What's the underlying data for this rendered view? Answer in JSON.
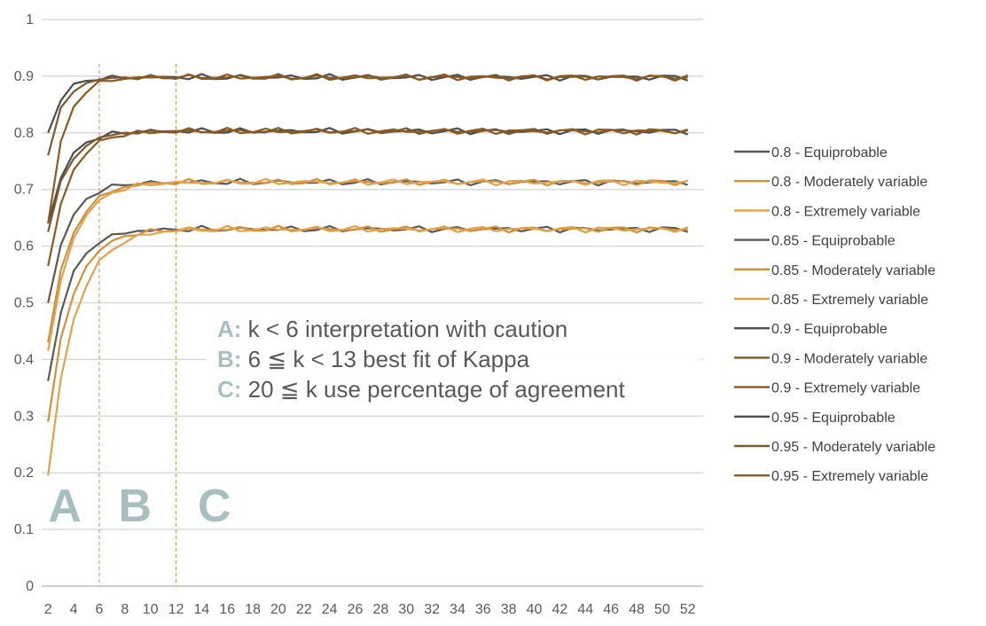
{
  "chart_data": {
    "type": "line",
    "title": "",
    "xlabel": "",
    "ylabel": "",
    "x": [
      2,
      3,
      4,
      5,
      6,
      7,
      8,
      9,
      10,
      11,
      12,
      13,
      14,
      15,
      16,
      17,
      18,
      19,
      20,
      21,
      22,
      23,
      24,
      25,
      26,
      27,
      28,
      29,
      30,
      31,
      32,
      33,
      34,
      35,
      36,
      37,
      38,
      39,
      40,
      41,
      42,
      43,
      44,
      45,
      46,
      47,
      48,
      49,
      50,
      51,
      52
    ],
    "xticks": [
      2,
      4,
      6,
      8,
      10,
      12,
      14,
      16,
      18,
      20,
      22,
      24,
      26,
      28,
      30,
      32,
      34,
      36,
      38,
      40,
      42,
      44,
      46,
      48,
      50,
      52
    ],
    "xlim": [
      1.5,
      53.2
    ],
    "ylim": [
      0,
      1
    ],
    "yticks": [
      0,
      0.1,
      0.2,
      0.3,
      0.4,
      0.5,
      0.6,
      0.7,
      0.8,
      0.9,
      1
    ],
    "ytick_labels": [
      "0",
      "0.1",
      "0.2",
      "0.3",
      "0.4",
      "0.5",
      "0.6",
      "0.7",
      "0.8",
      "0.9",
      "1"
    ],
    "grid": true,
    "legend_position": "right",
    "vertical_markers": [
      6,
      12
    ],
    "series": [
      {
        "name": "0.8 -  Equiprobable",
        "color": "#5a5a5a",
        "asymptote": 0.63,
        "start": 0.362,
        "rate": 0.62,
        "phase": 0.0
      },
      {
        "name": "0.8 -  Moderately variable",
        "color": "#d29138",
        "asymptote": 0.63,
        "start": 0.29,
        "rate": 0.55,
        "phase": 1.3
      },
      {
        "name": "0.8 -  Extremely variable",
        "color": "#e0a24a",
        "asymptote": 0.63,
        "start": 0.195,
        "rate": 0.5,
        "phase": 2.6
      },
      {
        "name": "0.85 -  Equiprobable",
        "color": "#5a5a5a",
        "asymptote": 0.713,
        "start": 0.5,
        "rate": 0.65,
        "phase": 0.7
      },
      {
        "name": "0.85 -  Moderately variable",
        "color": "#d29138",
        "asymptote": 0.713,
        "start": 0.43,
        "rate": 0.58,
        "phase": 1.9
      },
      {
        "name": "0.85 -  Extremely variable",
        "color": "#e0a24a",
        "asymptote": 0.713,
        "start": 0.415,
        "rate": 0.55,
        "phase": 3.1
      },
      {
        "name": "0.9 -  Equiprobable",
        "color": "#4d4d4d",
        "asymptote": 0.803,
        "start": 0.64,
        "rate": 0.7,
        "phase": 0.4
      },
      {
        "name": "0.9 -  Moderately variable",
        "color": "#7a5a2e",
        "asymptote": 0.803,
        "start": 0.625,
        "rate": 0.66,
        "phase": 1.6
      },
      {
        "name": "0.9 -  Extremely variable",
        "color": "#8b5a1c",
        "asymptote": 0.803,
        "start": 0.565,
        "rate": 0.62,
        "phase": 2.8
      },
      {
        "name": "0.95 -  Equiprobable",
        "color": "#4d4d4d",
        "asymptote": 0.898,
        "start": 0.8,
        "rate": 0.95,
        "phase": 0.2
      },
      {
        "name": "0.95 -  Moderately variable",
        "color": "#7a5a2e",
        "asymptote": 0.898,
        "start": 0.76,
        "rate": 0.88,
        "phase": 1.4
      },
      {
        "name": "0.95 -  Extremely variable",
        "color": "#8b5a1c",
        "asymptote": 0.898,
        "start": 0.64,
        "rate": 0.8,
        "phase": 2.2
      }
    ],
    "annotations": [
      {
        "key": "A:",
        "text": " k < 6 interpretation with caution"
      },
      {
        "key": "B:",
        "text": " 6 ≦ k < 13 best fit of Kappa"
      },
      {
        "key": "C:",
        "text": " 20 ≦ k use percentage of agreement"
      }
    ],
    "region_labels": [
      {
        "label": "A",
        "x": 3.3
      },
      {
        "label": "B",
        "x": 8.8
      },
      {
        "label": "C",
        "x": 15.0
      }
    ]
  }
}
